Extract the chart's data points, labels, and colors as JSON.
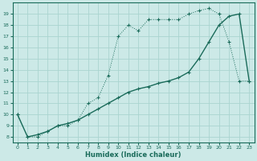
{
  "xlabel": "Humidex (Indice chaleur)",
  "bg_color": "#cce9e7",
  "grid_color": "#aad4d0",
  "line_color": "#1a6b5a",
  "xlim": [
    -0.5,
    23.5
  ],
  "ylim": [
    7.5,
    20.0
  ],
  "xticks": [
    0,
    1,
    2,
    3,
    4,
    5,
    6,
    7,
    8,
    9,
    10,
    11,
    12,
    13,
    14,
    15,
    16,
    17,
    18,
    19,
    20,
    21,
    22,
    23
  ],
  "yticks": [
    8,
    9,
    10,
    11,
    12,
    13,
    14,
    15,
    16,
    17,
    18,
    19
  ],
  "line1_x": [
    0,
    1,
    2,
    3,
    4,
    5,
    6,
    7,
    8,
    9,
    10,
    11,
    12,
    13,
    14,
    15,
    16,
    17,
    18,
    19,
    20,
    21,
    22,
    23
  ],
  "line1_y": [
    10.0,
    8.0,
    8.0,
    8.5,
    9.0,
    9.0,
    9.5,
    11.0,
    11.5,
    13.5,
    17.0,
    18.0,
    17.5,
    18.5,
    18.5,
    18.5,
    18.5,
    19.0,
    19.3,
    19.5,
    19.0,
    16.5,
    13.0,
    13.0
  ],
  "line2_x": [
    0,
    1,
    2,
    3,
    4,
    5,
    6,
    7,
    8,
    9,
    10,
    11,
    12,
    13,
    14,
    15,
    16,
    17,
    18,
    19,
    20,
    21,
    22,
    23
  ],
  "line2_y": [
    10.0,
    8.0,
    8.2,
    8.5,
    9.0,
    9.2,
    9.5,
    10.0,
    10.5,
    11.0,
    11.5,
    12.0,
    12.3,
    12.5,
    12.8,
    13.0,
    13.3,
    13.8,
    15.0,
    16.5,
    18.0,
    18.8,
    19.0,
    13.0
  ]
}
